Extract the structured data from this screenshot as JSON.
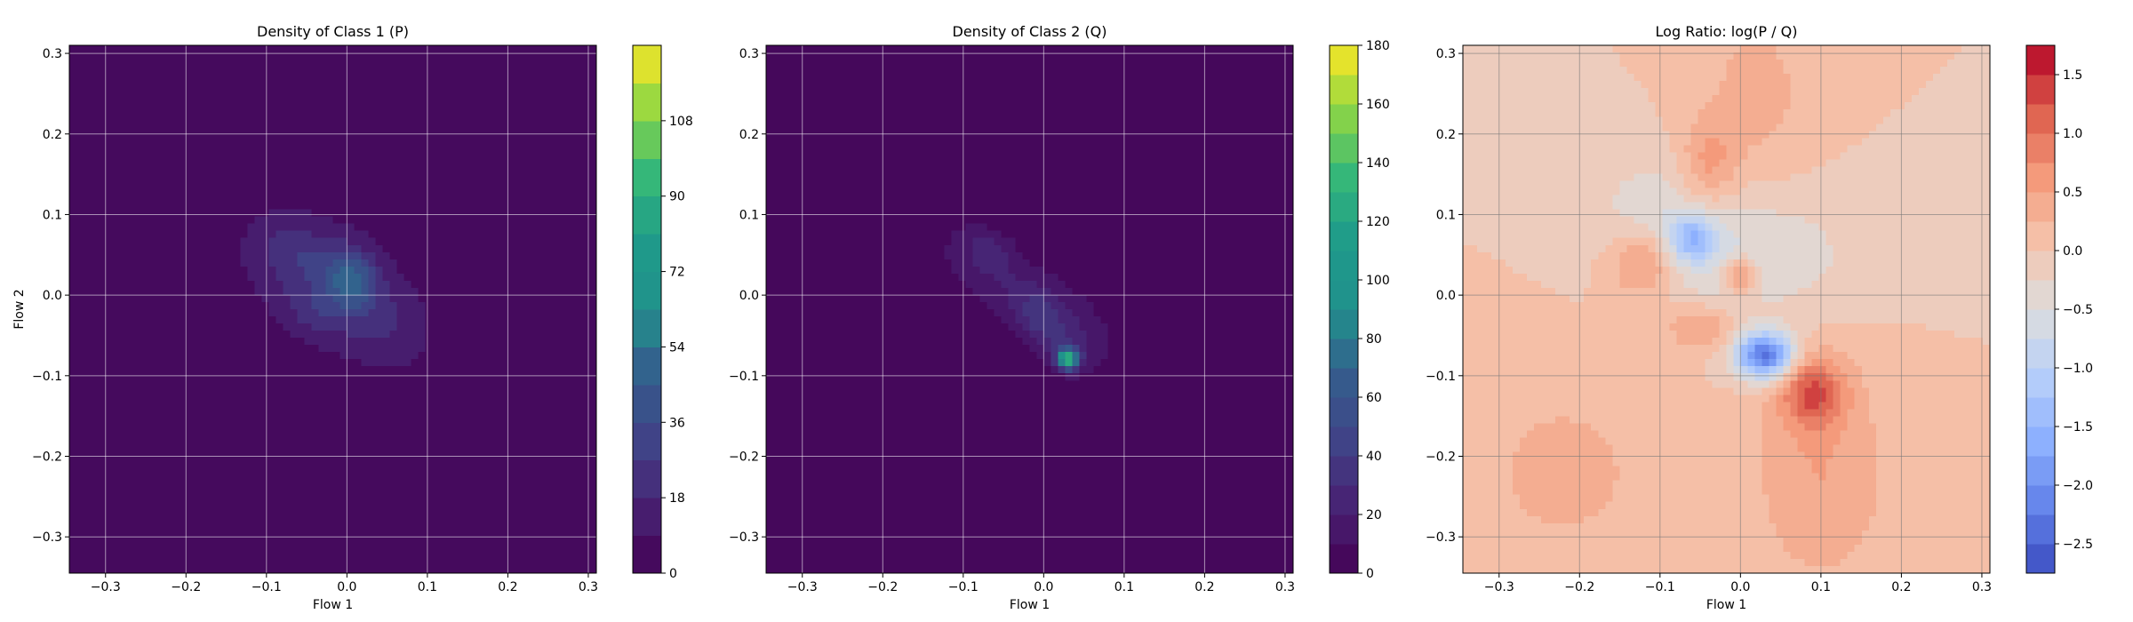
{
  "chart_data": [
    {
      "type": "heatmap",
      "title": "Density of Class 1 (P)",
      "xlabel": "Flow 1",
      "ylabel": "Flow 2",
      "xlim": [
        -0.345,
        0.31
      ],
      "ylim": [
        -0.345,
        0.31
      ],
      "xticks": [
        -0.3,
        -0.2,
        -0.1,
        0.0,
        0.1,
        0.2,
        0.3
      ],
      "yticks": [
        -0.3,
        -0.2,
        -0.1,
        0.0,
        0.1,
        0.2,
        0.3
      ],
      "grid": true,
      "colormap": "viridis",
      "colorbar": {
        "min": 0,
        "max": 126,
        "levels": 14,
        "ticks": [
          0,
          18,
          36,
          54,
          72,
          90,
          108
        ]
      },
      "blobs": [
        {
          "x": -0.02,
          "y": 0.01,
          "sx": 0.085,
          "sy": 0.07,
          "rho": -0.45,
          "amp": 18
        },
        {
          "x": 0.005,
          "y": 0.02,
          "sx": 0.02,
          "sy": 0.025,
          "rho": 0.0,
          "amp": 32
        },
        {
          "x": -0.06,
          "y": 0.05,
          "sx": 0.035,
          "sy": 0.03,
          "rho": -0.2,
          "amp": 12
        },
        {
          "x": -0.04,
          "y": -0.02,
          "sx": 0.025,
          "sy": 0.02,
          "rho": 0.0,
          "amp": 10
        },
        {
          "x": 0.04,
          "y": -0.03,
          "sx": 0.04,
          "sy": 0.04,
          "rho": -0.3,
          "amp": 8
        }
      ]
    },
    {
      "type": "heatmap",
      "title": "Density of Class 2 (Q)",
      "xlabel": "Flow 1",
      "ylabel": "",
      "xlim": [
        -0.345,
        0.31
      ],
      "ylim": [
        -0.345,
        0.31
      ],
      "xticks": [
        -0.3,
        -0.2,
        -0.1,
        0.0,
        0.1,
        0.2,
        0.3
      ],
      "yticks": [
        -0.3,
        -0.2,
        -0.1,
        0.0,
        0.1,
        0.2,
        0.3
      ],
      "grid": true,
      "colormap": "viridis",
      "colorbar": {
        "min": 0,
        "max": 180,
        "levels": 18,
        "ticks": [
          0,
          20,
          40,
          60,
          80,
          100,
          120,
          140,
          160,
          180
        ]
      },
      "blobs": [
        {
          "x": -0.02,
          "y": 0.0,
          "sx": 0.08,
          "sy": 0.05,
          "rho": -0.75,
          "amp": 20
        },
        {
          "x": -0.07,
          "y": 0.06,
          "sx": 0.025,
          "sy": 0.02,
          "rho": -0.3,
          "amp": 16
        },
        {
          "x": 0.03,
          "y": -0.08,
          "sx": 0.009,
          "sy": 0.009,
          "rho": 0.0,
          "amp": 115
        },
        {
          "x": 0.02,
          "y": -0.06,
          "sx": 0.03,
          "sy": 0.025,
          "rho": -0.4,
          "amp": 22
        },
        {
          "x": -0.01,
          "y": -0.02,
          "sx": 0.02,
          "sy": 0.02,
          "rho": 0.0,
          "amp": 14
        }
      ]
    },
    {
      "type": "heatmap",
      "title": "Log Ratio: log(P / Q)",
      "xlabel": "Flow 1",
      "ylabel": "",
      "xlim": [
        -0.345,
        0.31
      ],
      "ylim": [
        -0.345,
        0.31
      ],
      "xticks": [
        -0.3,
        -0.2,
        -0.1,
        0.0,
        0.1,
        0.2,
        0.3
      ],
      "yticks": [
        -0.3,
        -0.2,
        -0.1,
        0.0,
        0.1,
        0.2,
        0.3
      ],
      "grid": true,
      "colormap": "coolwarm",
      "colorbar": {
        "min": -2.75,
        "max": 1.75,
        "levels": 18,
        "ticks": [
          -2.5,
          -2.0,
          -1.5,
          -1.0,
          -0.5,
          0.0,
          0.5,
          1.0,
          1.5
        ]
      },
      "blobs": [
        {
          "x": 0.03,
          "y": -0.075,
          "sx": 0.025,
          "sy": 0.02,
          "rho": 0.0,
          "amp": -2.4
        },
        {
          "x": -0.06,
          "y": 0.07,
          "sx": 0.02,
          "sy": 0.02,
          "rho": 0.0,
          "amp": -1.1
        },
        {
          "x": 0.09,
          "y": -0.12,
          "sx": 0.028,
          "sy": 0.03,
          "rho": 0.0,
          "amp": 1.1
        },
        {
          "x": 0.0,
          "y": 0.025,
          "sx": 0.015,
          "sy": 0.015,
          "rho": 0.0,
          "amp": 1.0
        },
        {
          "x": -0.12,
          "y": 0.04,
          "sx": 0.03,
          "sy": 0.03,
          "rho": 0.0,
          "amp": 0.8
        },
        {
          "x": -0.04,
          "y": 0.16,
          "sx": 0.025,
          "sy": 0.04,
          "rho": 0.0,
          "amp": 0.6
        },
        {
          "x": -0.05,
          "y": -0.04,
          "sx": 0.03,
          "sy": 0.02,
          "rho": 0.0,
          "amp": 0.6
        },
        {
          "x": -0.08,
          "y": 0.08,
          "sx": 0.07,
          "sy": 0.06,
          "rho": -0.3,
          "amp": -0.5
        },
        {
          "x": 0.05,
          "y": 0.05,
          "sx": 0.08,
          "sy": 0.06,
          "rho": 0.0,
          "amp": -0.35
        },
        {
          "x": 0.1,
          "y": -0.22,
          "sx": 0.06,
          "sy": 0.1,
          "rho": 0.0,
          "amp": 0.5
        },
        {
          "x": -0.22,
          "y": -0.22,
          "sx": 0.08,
          "sy": 0.08,
          "rho": 0.0,
          "amp": 0.35
        },
        {
          "x": 0.02,
          "y": 0.25,
          "sx": 0.05,
          "sy": 0.08,
          "rho": 0.0,
          "amp": 0.35
        }
      ]
    }
  ]
}
